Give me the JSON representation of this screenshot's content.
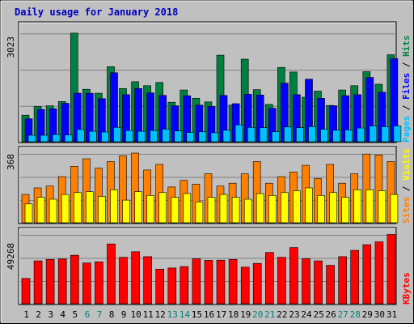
{
  "chart_data": {
    "type": "bar",
    "title": "Daily usage for January 2018",
    "colors": {
      "background": "#c0c0c0",
      "frame": "#000000",
      "title": "#0000c0",
      "hits": "#008040",
      "files": "#0000ff",
      "pages": "#00c0ff",
      "visits": "#ffff00",
      "sites": "#ff8000",
      "kbytes": "#ff0000",
      "weekend_day": "#008080",
      "weekday": "#000000",
      "hline": "#808080"
    },
    "days": [
      "1",
      "2",
      "3",
      "4",
      "5",
      "6",
      "7",
      "8",
      "9",
      "10",
      "11",
      "12",
      "13",
      "14",
      "15",
      "16",
      "17",
      "18",
      "19",
      "20",
      "21",
      "22",
      "23",
      "24",
      "25",
      "26",
      "27",
      "28",
      "29",
      "30",
      "31"
    ],
    "weekend_days": [
      "6",
      "7",
      "13",
      "14",
      "20",
      "21",
      "27",
      "28"
    ],
    "panels": [
      {
        "name": "hits-files-pages",
        "max_label": "3023",
        "ymax": 3023,
        "legend": [
          {
            "text": "Pages",
            "color": "#00c0ff"
          },
          {
            "text": " / ",
            "color": "#000000"
          },
          {
            "text": "Files",
            "color": "#0000ff"
          },
          {
            "text": " / ",
            "color": "#000000"
          },
          {
            "text": "Hits",
            "color": "#008040"
          }
        ],
        "series": [
          {
            "name": "Hits",
            "color": "#008040",
            "values": [
              740,
              980,
              1000,
              1120,
              3023,
              1460,
              1350,
              2090,
              1480,
              1670,
              1560,
              1650,
              1100,
              1440,
              1210,
              1110,
              2410,
              1020,
              2300,
              1450,
              1040,
              2070,
              1940,
              1240,
              1410,
              1010,
              1440,
              1560,
              1950,
              1600,
              2420
            ]
          },
          {
            "name": "Files",
            "color": "#0000ff",
            "values": [
              640,
              900,
              920,
              1070,
              1350,
              1350,
              1200,
              1920,
              1310,
              1480,
              1360,
              1290,
              1000,
              1280,
              1020,
              980,
              1290,
              1060,
              1320,
              1300,
              930,
              1630,
              1310,
              1740,
              1210,
              1000,
              1280,
              1310,
              1790,
              1380,
              2310
            ]
          },
          {
            "name": "Pages",
            "color": "#00c0ff",
            "values": [
              180,
              180,
              200,
              190,
              340,
              290,
              270,
              400,
              310,
              290,
              310,
              350,
              300,
              260,
              280,
              250,
              320,
              470,
              400,
              390,
              280,
              410,
              390,
              420,
              350,
              320,
              330,
              380,
              440,
              420,
              440
            ]
          }
        ]
      },
      {
        "name": "sites-visits",
        "max_label": "368",
        "ymax": 368,
        "legend": [
          {
            "text": "Sites",
            "color": "#ff8000"
          },
          {
            "text": " / ",
            "color": "#000000"
          },
          {
            "text": "Visits",
            "color": "#ffff00"
          }
        ],
        "series": [
          {
            "name": "Sites",
            "color": "#ff8000",
            "values": [
              150,
              185,
              195,
              245,
              300,
              340,
              290,
              325,
              355,
              370,
              280,
              310,
              190,
              225,
              205,
              260,
              195,
              210,
              260,
              325,
              210,
              245,
              270,
              305,
              235,
              310,
              210,
              260,
              365,
              360,
              325
            ]
          },
          {
            "name": "Visits",
            "color": "#ffff00",
            "values": [
              100,
              135,
              125,
              150,
              160,
              165,
              140,
              175,
              120,
              165,
              145,
              160,
              135,
              155,
              110,
              135,
              150,
              135,
              125,
              155,
              145,
              160,
              170,
              185,
              145,
              160,
              135,
              175,
              175,
              170,
              150
            ]
          }
        ]
      },
      {
        "name": "kbytes",
        "max_label": "49268",
        "ymax": 49268,
        "legend": [
          {
            "text": "KBytes",
            "color": "#ff0000"
          }
        ],
        "series": [
          {
            "name": "KBytes",
            "color": "#ff0000",
            "values": [
              18000,
              30500,
              31500,
              31800,
              34500,
              29000,
              29800,
              42500,
              33000,
              37000,
              33500,
              24600,
              25400,
              26400,
              32000,
              30900,
              31000,
              31500,
              26000,
              28700,
              36500,
              33000,
              40000,
              32000,
              30500,
              27300,
              33500,
              38000,
              42000,
              44000,
              49268
            ]
          }
        ]
      }
    ]
  }
}
